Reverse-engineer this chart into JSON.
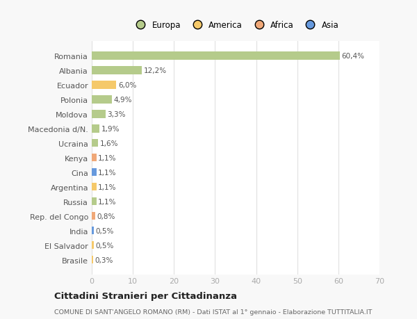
{
  "countries": [
    "Romania",
    "Albania",
    "Ecuador",
    "Polonia",
    "Moldova",
    "Macedonia d/N.",
    "Ucraina",
    "Kenya",
    "Cina",
    "Argentina",
    "Russia",
    "Rep. del Congo",
    "India",
    "El Salvador",
    "Brasile"
  ],
  "values": [
    60.4,
    12.2,
    6.0,
    4.9,
    3.3,
    1.9,
    1.6,
    1.1,
    1.1,
    1.1,
    1.1,
    0.8,
    0.5,
    0.5,
    0.3
  ],
  "labels": [
    "60,4%",
    "12,2%",
    "6,0%",
    "4,9%",
    "3,3%",
    "1,9%",
    "1,6%",
    "1,1%",
    "1,1%",
    "1,1%",
    "1,1%",
    "0,8%",
    "0,5%",
    "0,5%",
    "0,3%"
  ],
  "colors": [
    "#b5cb8b",
    "#b5cb8b",
    "#f5c96a",
    "#b5cb8b",
    "#b5cb8b",
    "#b5cb8b",
    "#b5cb8b",
    "#f0a878",
    "#6699dd",
    "#f5c96a",
    "#b5cb8b",
    "#f0a878",
    "#6699dd",
    "#f5c96a",
    "#f5c96a"
  ],
  "legend_labels": [
    "Europa",
    "America",
    "Africa",
    "Asia"
  ],
  "legend_colors": [
    "#b5cb8b",
    "#f5c96a",
    "#f0a878",
    "#6699dd"
  ],
  "xlim": [
    0,
    70
  ],
  "xticks": [
    0,
    10,
    20,
    30,
    40,
    50,
    60,
    70
  ],
  "title": "Cittadini Stranieri per Cittadinanza",
  "subtitle": "COMUNE DI SANT'ANGELO ROMANO (RM) - Dati ISTAT al 1° gennaio - Elaborazione TUTTITALIA.IT",
  "bg_color": "#f8f8f8",
  "plot_bg_color": "#ffffff",
  "grid_color": "#e0e0e0",
  "label_color": "#555555",
  "tick_color": "#aaaaaa"
}
